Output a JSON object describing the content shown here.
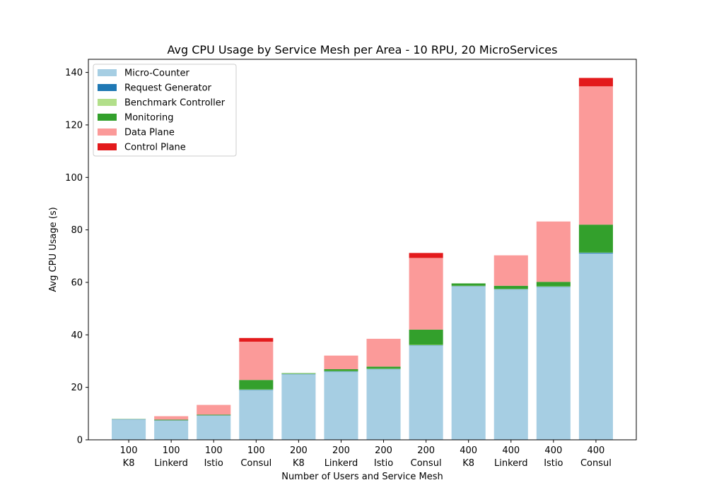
{
  "chart_data": {
    "type": "bar",
    "stacked": true,
    "title": "Avg CPU Usage by Service Mesh per Area - 10 RPU, 20 MicroServices",
    "xlabel": "Number of Users and Service Mesh",
    "ylabel": "Avg CPU Usage (s)",
    "ylim": [
      0,
      145
    ],
    "yticks": [
      0,
      20,
      40,
      60,
      80,
      100,
      120,
      140
    ],
    "grid": false,
    "legend_position": "top-left",
    "categories": [
      [
        "100",
        "K8"
      ],
      [
        "100",
        "Linkerd"
      ],
      [
        "100",
        "Istio"
      ],
      [
        "100",
        "Consul"
      ],
      [
        "200",
        "K8"
      ],
      [
        "200",
        "Linkerd"
      ],
      [
        "200",
        "Istio"
      ],
      [
        "200",
        "Consul"
      ],
      [
        "400",
        "K8"
      ],
      [
        "400",
        "Linkerd"
      ],
      [
        "400",
        "Istio"
      ],
      [
        "400",
        "Consul"
      ]
    ],
    "series": [
      {
        "name": "Micro-Counter",
        "color": "#a6cee3",
        "values": [
          7.8,
          7.3,
          9.2,
          19.0,
          25.0,
          26.0,
          26.9,
          36.0,
          58.5,
          57.3,
          58.3,
          71.0
        ]
      },
      {
        "name": "Request Generator",
        "color": "#1f78b4",
        "values": [
          0.1,
          0.1,
          0.1,
          0.1,
          0.1,
          0.1,
          0.1,
          0.1,
          0.1,
          0.1,
          0.1,
          0.3
        ]
      },
      {
        "name": "Benchmark Controller",
        "color": "#b2df8a",
        "values": [
          0.1,
          0.1,
          0.1,
          0.1,
          0.1,
          0.1,
          0.1,
          0.1,
          0.1,
          0.1,
          0.1,
          0.1
        ]
      },
      {
        "name": "Monitoring",
        "color": "#33a02c",
        "values": [
          0.0,
          0.2,
          0.2,
          3.6,
          0.2,
          0.7,
          0.8,
          5.8,
          0.9,
          1.2,
          1.7,
          10.6
        ]
      },
      {
        "name": "Data Plane",
        "color": "#fb9a99",
        "values": [
          0.0,
          1.3,
          3.7,
          14.6,
          0.0,
          5.2,
          10.6,
          27.3,
          0.0,
          11.6,
          23.0,
          52.7
        ]
      },
      {
        "name": "Control Plane",
        "color": "#e31a1c",
        "values": [
          0.0,
          0.0,
          0.0,
          1.4,
          0.0,
          0.0,
          0.0,
          1.9,
          0.0,
          0.0,
          0.0,
          3.2
        ]
      }
    ]
  }
}
